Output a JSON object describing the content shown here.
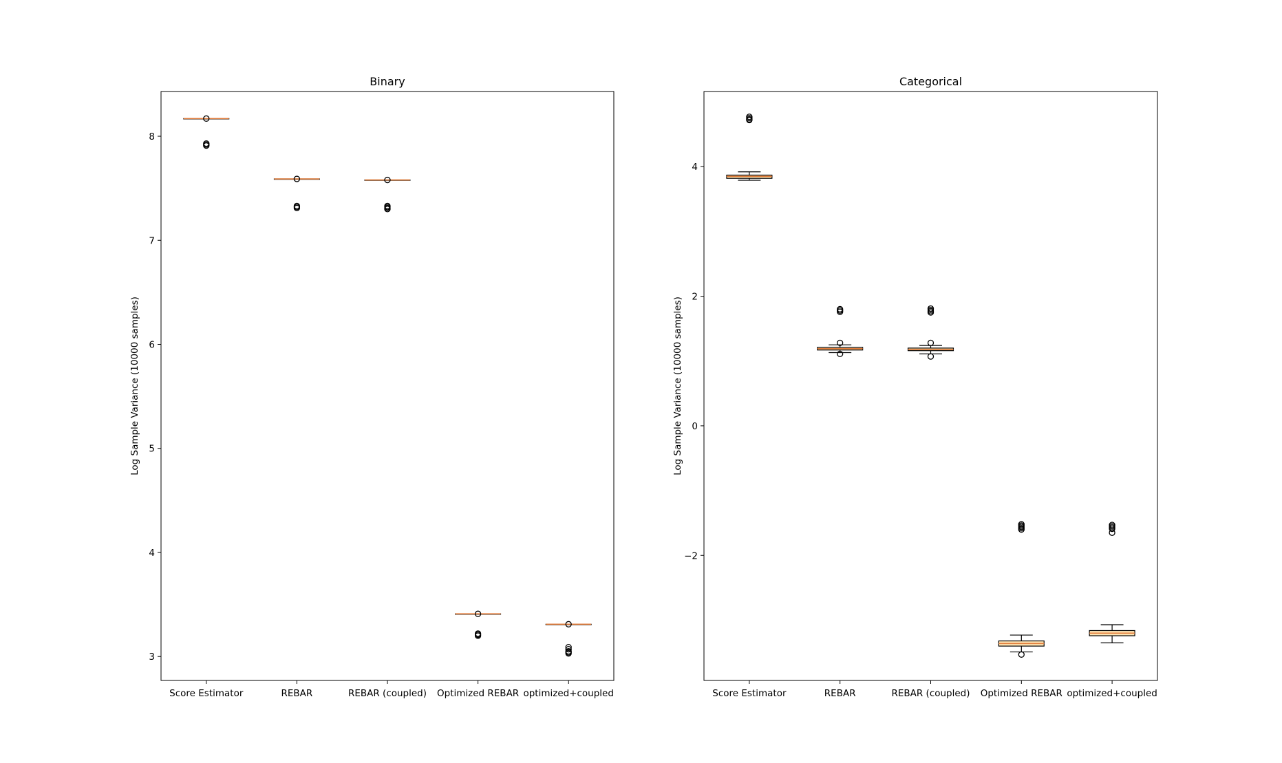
{
  "chart_data": [
    {
      "type": "box",
      "title": "Binary",
      "ylabel": "Log Sample Variance (10000 samples)",
      "xlabel": "",
      "ylim": [
        2.77,
        8.43
      ],
      "yticks": [
        "3",
        "4",
        "5",
        "6",
        "7",
        "8"
      ],
      "yticks_values": [
        3,
        4,
        5,
        6,
        7,
        8
      ],
      "categories": [
        "Score Estimator",
        "REBAR",
        "REBAR (coupled)",
        "Optimized REBAR",
        "optimized+coupled"
      ],
      "boxes": [
        {
          "whislo": 8.17,
          "q1": 8.17,
          "med": 8.17,
          "q3": 8.17,
          "whishi": 8.17,
          "fliers": [
            8.17,
            7.93,
            7.92,
            7.91
          ]
        },
        {
          "whislo": 7.59,
          "q1": 7.59,
          "med": 7.59,
          "q3": 7.59,
          "whishi": 7.59,
          "fliers": [
            7.59,
            7.33,
            7.32,
            7.31
          ]
        },
        {
          "whislo": 7.58,
          "q1": 7.58,
          "med": 7.58,
          "q3": 7.58,
          "whishi": 7.58,
          "fliers": [
            7.58,
            7.33,
            7.32,
            7.31,
            7.3
          ]
        },
        {
          "whislo": 3.41,
          "q1": 3.41,
          "med": 3.41,
          "q3": 3.41,
          "whishi": 3.41,
          "fliers": [
            3.41,
            3.22,
            3.21,
            3.2
          ]
        },
        {
          "whislo": 3.31,
          "q1": 3.31,
          "med": 3.31,
          "q3": 3.31,
          "whishi": 3.31,
          "fliers": [
            3.31,
            3.09,
            3.07,
            3.05,
            3.04,
            3.03
          ]
        }
      ]
    },
    {
      "type": "box",
      "title": "Categorical",
      "ylabel": "Log Sample Variance (10000 samples)",
      "xlabel": "",
      "ylim": [
        -3.93,
        5.16
      ],
      "yticks": [
        "−2",
        "0",
        "2",
        "4"
      ],
      "yticks_values": [
        -2,
        0,
        2,
        4
      ],
      "categories": [
        "Score Estimator",
        "REBAR",
        "REBAR (coupled)",
        "Optimized REBAR",
        "optimized+coupled"
      ],
      "boxes": [
        {
          "whislo": 3.79,
          "q1": 3.82,
          "med": 3.85,
          "q3": 3.87,
          "whishi": 3.92,
          "fliers": [
            4.77,
            4.75,
            4.73,
            4.72
          ]
        },
        {
          "whislo": 1.13,
          "q1": 1.17,
          "med": 1.19,
          "q3": 1.21,
          "whishi": 1.25,
          "fliers": [
            1.8,
            1.78,
            1.76,
            1.28,
            1.11
          ]
        },
        {
          "whislo": 1.11,
          "q1": 1.16,
          "med": 1.18,
          "q3": 1.2,
          "whishi": 1.24,
          "fliers": [
            1.81,
            1.79,
            1.77,
            1.75,
            1.28,
            1.07
          ]
        },
        {
          "whislo": -3.49,
          "q1": -3.4,
          "med": -3.36,
          "q3": -3.32,
          "whishi": -3.23,
          "fliers": [
            -1.52,
            -1.54,
            -1.56,
            -1.58,
            -1.6,
            -3.53
          ]
        },
        {
          "whislo": -3.35,
          "q1": -3.24,
          "med": -3.2,
          "q3": -3.16,
          "whishi": -3.07,
          "fliers": [
            -1.53,
            -1.55,
            -1.57,
            -1.59,
            -1.65
          ]
        }
      ]
    }
  ],
  "colors": {
    "box_face": "#ffe5b4",
    "median": "#e07b39",
    "edge": "#000000"
  }
}
